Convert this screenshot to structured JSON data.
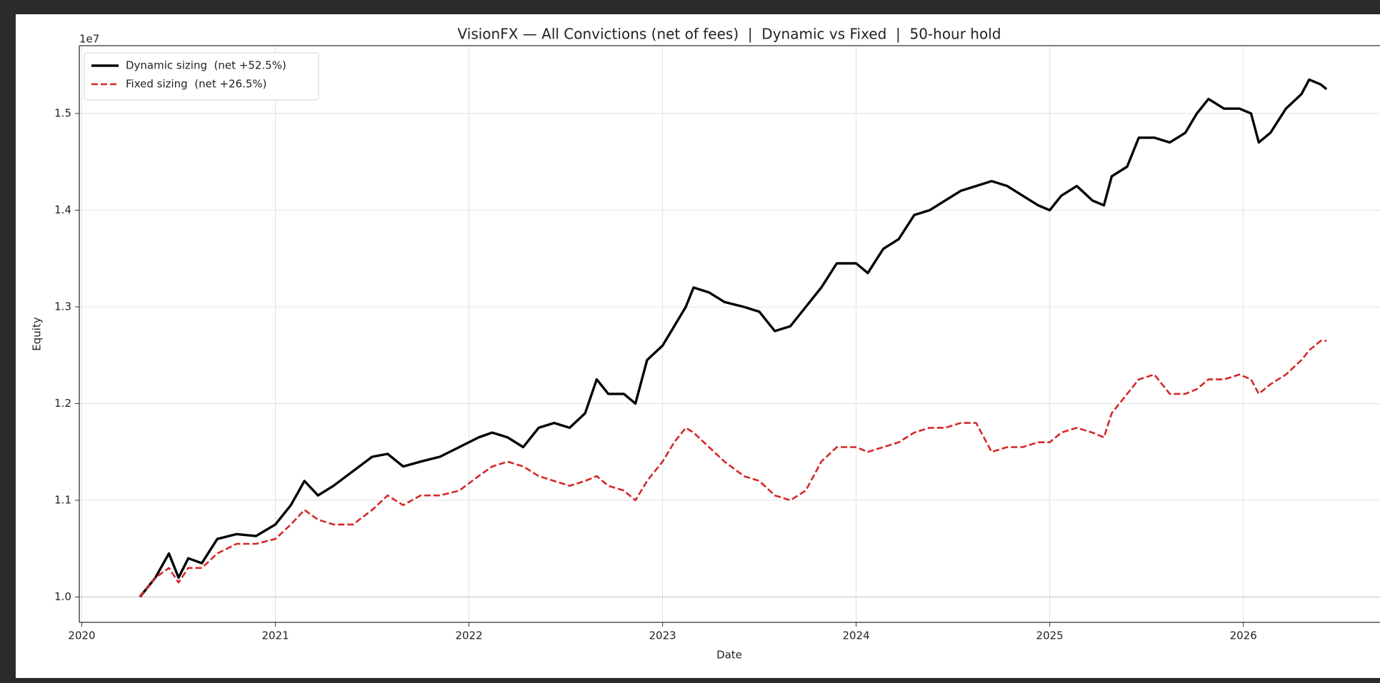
{
  "chart_data": {
    "type": "line",
    "title": "VisionFX — All Convictions (net of fees)  |  Dynamic vs Fixed  |  50-hour hold",
    "xlabel": "Date",
    "ylabel": "Equity",
    "y_offset_label": "1e7",
    "grid": true,
    "legend": "upper left",
    "hline": 10000000,
    "xlim": [
      2019.987,
      2026.706
    ],
    "xticks": [
      2020,
      2021,
      2022,
      2023,
      2024,
      2025,
      2026
    ],
    "ylim": [
      9738000,
      15701000
    ],
    "yticks": [
      {
        "value": 10000000,
        "label": "1.0"
      },
      {
        "value": 11000000,
        "label": "1.1"
      },
      {
        "value": 12000000,
        "label": "1.2"
      },
      {
        "value": 13000000,
        "label": "1.3"
      },
      {
        "value": 14000000,
        "label": "1.4"
      },
      {
        "value": 15000000,
        "label": "1.5"
      }
    ],
    "x": [
      2020.3,
      2020.38,
      2020.45,
      2020.5,
      2020.55,
      2020.62,
      2020.7,
      2020.8,
      2020.9,
      2021.0,
      2021.08,
      2021.15,
      2021.22,
      2021.3,
      2021.4,
      2021.5,
      2021.58,
      2021.66,
      2021.75,
      2021.85,
      2021.95,
      2022.05,
      2022.12,
      2022.2,
      2022.28,
      2022.36,
      2022.44,
      2022.52,
      2022.6,
      2022.66,
      2022.72,
      2022.8,
      2022.86,
      2022.92,
      2023.0,
      2023.06,
      2023.12,
      2023.16,
      2023.24,
      2023.32,
      2023.42,
      2023.5,
      2023.58,
      2023.66,
      2023.74,
      2023.82,
      2023.9,
      2024.0,
      2024.06,
      2024.14,
      2024.22,
      2024.3,
      2024.38,
      2024.46,
      2024.54,
      2024.62,
      2024.7,
      2024.78,
      2024.86,
      2024.94,
      2025.0,
      2025.06,
      2025.14,
      2025.22,
      2025.28,
      2025.32,
      2025.4,
      2025.46,
      2025.54,
      2025.62,
      2025.7,
      2025.76,
      2025.82,
      2025.9,
      2025.98,
      2026.04,
      2026.08,
      2026.14,
      2026.22,
      2026.3,
      2026.34,
      2026.4,
      2026.43
    ],
    "series": [
      {
        "name": "Dynamic sizing  (net +52.5%)",
        "color": "#000000",
        "dash": false,
        "values": [
          10000000,
          10200000,
          10450000,
          10200000,
          10400000,
          10350000,
          10600000,
          10650000,
          10630000,
          10750000,
          10950000,
          11200000,
          11050000,
          11150000,
          11300000,
          11450000,
          11480000,
          11350000,
          11400000,
          11450000,
          11550000,
          11650000,
          11700000,
          11650000,
          11550000,
          11750000,
          11800000,
          11750000,
          11900000,
          12250000,
          12100000,
          12100000,
          12000000,
          12450000,
          12600000,
          12800000,
          13000000,
          13200000,
          13150000,
          13050000,
          13000000,
          12950000,
          12750000,
          12800000,
          13000000,
          13200000,
          13450000,
          13450000,
          13350000,
          13600000,
          13700000,
          13950000,
          14000000,
          14100000,
          14200000,
          14250000,
          14300000,
          14250000,
          14150000,
          14050000,
          14000000,
          14150000,
          14250000,
          14100000,
          14050000,
          14350000,
          14450000,
          14750000,
          14750000,
          14700000,
          14800000,
          15000000,
          15150000,
          15050000,
          15050000,
          15000000,
          14700000,
          14800000,
          15050000,
          15200000,
          15350000,
          15300000,
          15250000
        ]
      },
      {
        "name": "Fixed sizing  (net +26.5%)",
        "color": "#d62728",
        "dash": true,
        "values": [
          10000000,
          10200000,
          10300000,
          10150000,
          10300000,
          10300000,
          10450000,
          10550000,
          10550000,
          10600000,
          10750000,
          10900000,
          10800000,
          10750000,
          10750000,
          10900000,
          11050000,
          10950000,
          11050000,
          11050000,
          11100000,
          11250000,
          11350000,
          11400000,
          11350000,
          11250000,
          11200000,
          11150000,
          11200000,
          11250000,
          11150000,
          11100000,
          11000000,
          11200000,
          11400000,
          11600000,
          11750000,
          11700000,
          11550000,
          11400000,
          11250000,
          11200000,
          11050000,
          11000000,
          11100000,
          11400000,
          11550000,
          11550000,
          11500000,
          11550000,
          11600000,
          11700000,
          11750000,
          11750000,
          11800000,
          11800000,
          11500000,
          11550000,
          11550000,
          11600000,
          11600000,
          11700000,
          11750000,
          11700000,
          11650000,
          11900000,
          12100000,
          12250000,
          12300000,
          12100000,
          12100000,
          12150000,
          12250000,
          12250000,
          12300000,
          12250000,
          12100000,
          12200000,
          12300000,
          12450000,
          12550000,
          12650000,
          12650000
        ]
      }
    ]
  }
}
